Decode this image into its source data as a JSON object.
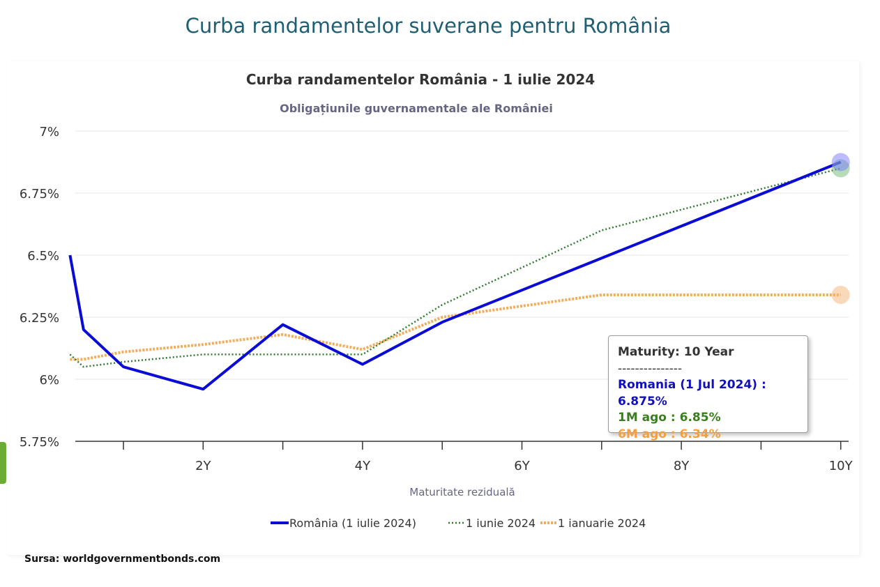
{
  "page_title": "Curba randamentelor suverane pentru România",
  "source": "Sursa: worldgovernmentbonds.com",
  "colors": {
    "romania": "#0b0bd6",
    "one_month": "#2f7a2f",
    "six_month": "#f2ad5a",
    "page_title": "#1f5f74"
  },
  "tooltip": {
    "header": "Maturity: 10 Year",
    "separator": "---------------",
    "line_romania": "Romania (1 Jul 2024) : 6.875%",
    "line_1m": "1M ago : 6.85%",
    "line_6m": "6M ago : 6.34%"
  },
  "chart_data": {
    "type": "line",
    "title": "Curba randamentelor România - 1 iulie 2024",
    "subtitle": "Obligațiunile guvernamentale ale României",
    "xlabel": "Maturitate reziduală",
    "ylabel": "",
    "xlim": [
      0.25,
      10
    ],
    "ylim": [
      5.75,
      7
    ],
    "x_ticks": [
      2,
      4,
      6,
      8,
      10
    ],
    "x_tick_labels": [
      "2Y",
      "4Y",
      "6Y",
      "8Y",
      "10Y"
    ],
    "x_minor_ticks": [
      1,
      3,
      5,
      7,
      9
    ],
    "y_ticks": [
      5.75,
      6,
      6.25,
      6.5,
      6.75,
      7
    ],
    "y_tick_labels": [
      "5.75%",
      "6%",
      "6.25%",
      "6.5%",
      "6.75%",
      "7%"
    ],
    "grid": true,
    "legend_position": "bottom",
    "series": [
      {
        "name": "România (1 iulie 2024)",
        "style": "solid",
        "x": [
          0.33,
          0.5,
          1,
          2,
          3,
          4,
          5,
          10
        ],
        "y": [
          6.5,
          6.2,
          6.05,
          5.96,
          6.22,
          6.06,
          6.23,
          6.875
        ]
      },
      {
        "name": "1 iunie 2024",
        "style": "dotted",
        "x": [
          0.33,
          0.5,
          1,
          2,
          3,
          4,
          5,
          7,
          10
        ],
        "y": [
          6.1,
          6.05,
          6.07,
          6.1,
          6.1,
          6.1,
          6.3,
          6.6,
          6.85
        ]
      },
      {
        "name": "1 ianuarie 2024",
        "style": "dotted",
        "x": [
          0.33,
          0.5,
          1,
          2,
          3,
          4,
          5,
          7,
          10
        ],
        "y": [
          6.08,
          6.08,
          6.11,
          6.14,
          6.18,
          6.12,
          6.25,
          6.34,
          6.34
        ]
      }
    ]
  }
}
